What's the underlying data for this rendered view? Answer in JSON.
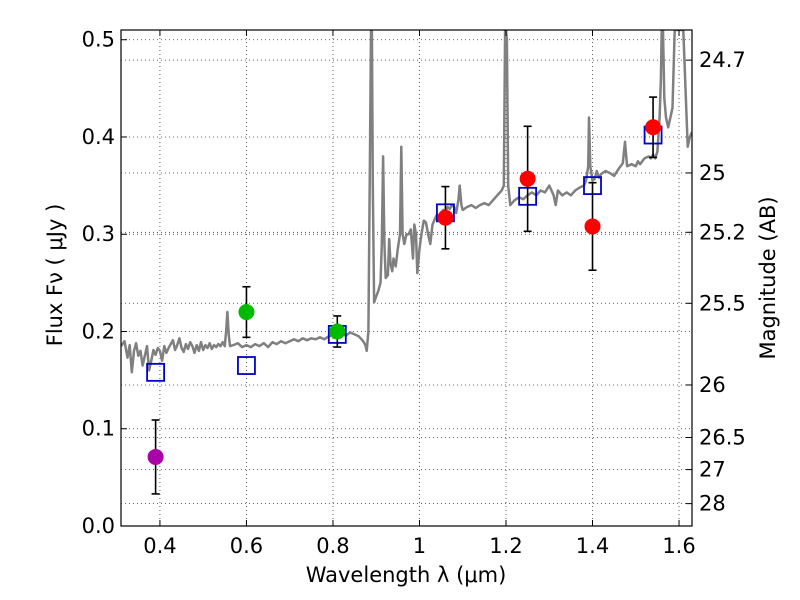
{
  "chart_data": {
    "type": "scatter",
    "xlabel": "Wavelength  λ (μm)",
    "ylabel": "Flux  Fν  ( μJy )",
    "y2label": "Magnitude (AB)",
    "xlim": [
      0.31,
      1.63
    ],
    "ylim": [
      0.0,
      0.51
    ],
    "grid": true,
    "x_ticks": [
      0.4,
      0.6,
      0.8,
      1.0,
      1.2,
      1.4,
      1.6
    ],
    "x_tick_labels": [
      "0.4",
      "0.6",
      "0.8",
      "1",
      "1.2",
      "1.4",
      "1.6"
    ],
    "y_ticks": [
      0.0,
      0.1,
      0.2,
      0.3,
      0.4,
      0.5
    ],
    "y_tick_labels": [
      "0.0",
      "0.1",
      "0.2",
      "0.3",
      "0.4",
      "0.5"
    ],
    "y2_ticks": [
      {
        "label": "24.7",
        "flux": 0.479
      },
      {
        "label": "25",
        "flux": 0.363
      },
      {
        "label": "25.2",
        "flux": 0.302
      },
      {
        "label": "25.5",
        "flux": 0.229
      },
      {
        "label": "26",
        "flux": 0.145
      },
      {
        "label": "26.5",
        "flux": 0.091
      },
      {
        "label": "27",
        "flux": 0.058
      },
      {
        "label": "28",
        "flux": 0.023
      }
    ],
    "model_spectrum": {
      "color": "#808080",
      "points": [
        [
          0.31,
          0.185
        ],
        [
          0.318,
          0.19
        ],
        [
          0.325,
          0.173
        ],
        [
          0.33,
          0.186
        ],
        [
          0.335,
          0.158
        ],
        [
          0.34,
          0.18
        ],
        [
          0.345,
          0.188
        ],
        [
          0.35,
          0.175
        ],
        [
          0.355,
          0.18
        ],
        [
          0.36,
          0.165
        ],
        [
          0.365,
          0.175
        ],
        [
          0.37,
          0.185
        ],
        [
          0.375,
          0.16
        ],
        [
          0.38,
          0.17
        ],
        [
          0.385,
          0.181
        ],
        [
          0.39,
          0.176
        ],
        [
          0.395,
          0.183
        ],
        [
          0.4,
          0.18
        ],
        [
          0.405,
          0.17
        ],
        [
          0.41,
          0.185
        ],
        [
          0.415,
          0.178
        ],
        [
          0.42,
          0.183
        ],
        [
          0.425,
          0.187
        ],
        [
          0.43,
          0.191
        ],
        [
          0.435,
          0.181
        ],
        [
          0.44,
          0.186
        ],
        [
          0.445,
          0.193
        ],
        [
          0.45,
          0.183
        ],
        [
          0.455,
          0.179
        ],
        [
          0.46,
          0.187
        ],
        [
          0.465,
          0.182
        ],
        [
          0.47,
          0.189
        ],
        [
          0.475,
          0.185
        ],
        [
          0.48,
          0.178
        ],
        [
          0.485,
          0.186
        ],
        [
          0.49,
          0.18
        ],
        [
          0.495,
          0.189
        ],
        [
          0.5,
          0.181
        ],
        [
          0.505,
          0.186
        ],
        [
          0.51,
          0.183
        ],
        [
          0.515,
          0.188
        ],
        [
          0.52,
          0.182
        ],
        [
          0.525,
          0.186
        ],
        [
          0.53,
          0.184
        ],
        [
          0.535,
          0.187
        ],
        [
          0.54,
          0.185
        ],
        [
          0.545,
          0.189
        ],
        [
          0.55,
          0.185
        ],
        [
          0.553,
          0.2
        ],
        [
          0.556,
          0.22
        ],
        [
          0.559,
          0.197
        ],
        [
          0.562,
          0.185
        ],
        [
          0.57,
          0.186
        ],
        [
          0.58,
          0.188
        ],
        [
          0.59,
          0.184
        ],
        [
          0.6,
          0.186
        ],
        [
          0.61,
          0.184
        ],
        [
          0.62,
          0.187
        ],
        [
          0.63,
          0.185
        ],
        [
          0.64,
          0.188
        ],
        [
          0.65,
          0.184
        ],
        [
          0.66,
          0.189
        ],
        [
          0.67,
          0.187
        ],
        [
          0.68,
          0.19
        ],
        [
          0.69,
          0.188
        ],
        [
          0.7,
          0.19
        ],
        [
          0.71,
          0.192
        ],
        [
          0.72,
          0.19
        ],
        [
          0.73,
          0.193
        ],
        [
          0.74,
          0.191
        ],
        [
          0.75,
          0.193
        ],
        [
          0.76,
          0.192
        ],
        [
          0.77,
          0.194
        ],
        [
          0.78,
          0.192
        ],
        [
          0.79,
          0.195
        ],
        [
          0.8,
          0.196
        ],
        [
          0.81,
          0.194
        ],
        [
          0.82,
          0.197
        ],
        [
          0.83,
          0.196
        ],
        [
          0.84,
          0.199
        ],
        [
          0.85,
          0.197
        ],
        [
          0.86,
          0.195
        ],
        [
          0.87,
          0.19
        ],
        [
          0.875,
          0.186
        ],
        [
          0.878,
          0.18
        ],
        [
          0.882,
          0.2
        ],
        [
          0.885,
          0.35
        ],
        [
          0.888,
          0.51
        ],
        [
          0.89,
          0.51
        ],
        [
          0.892,
          0.35
        ],
        [
          0.895,
          0.23
        ],
        [
          0.9,
          0.236
        ],
        [
          0.905,
          0.242
        ],
        [
          0.91,
          0.25
        ],
        [
          0.913,
          0.29
        ],
        [
          0.916,
          0.38
        ],
        [
          0.919,
          0.29
        ],
        [
          0.922,
          0.255
        ],
        [
          0.927,
          0.258
        ],
        [
          0.93,
          0.295
        ],
        [
          0.933,
          0.27
        ],
        [
          0.937,
          0.262
        ],
        [
          0.94,
          0.275
        ],
        [
          0.945,
          0.267
        ],
        [
          0.95,
          0.285
        ],
        [
          0.955,
          0.3
        ],
        [
          0.958,
          0.39
        ],
        [
          0.961,
          0.3
        ],
        [
          0.965,
          0.29
        ],
        [
          0.97,
          0.3
        ],
        [
          0.975,
          0.3
        ],
        [
          0.98,
          0.305
        ],
        [
          0.985,
          0.275
        ],
        [
          0.988,
          0.31
        ],
        [
          0.992,
          0.3
        ],
        [
          0.995,
          0.26
        ],
        [
          1.0,
          0.285
        ],
        [
          1.005,
          0.301
        ],
        [
          1.01,
          0.314
        ],
        [
          1.015,
          0.312
        ],
        [
          1.02,
          0.3
        ],
        [
          1.025,
          0.29
        ],
        [
          1.03,
          0.31
        ],
        [
          1.035,
          0.315
        ],
        [
          1.04,
          0.32
        ],
        [
          1.045,
          0.318
        ],
        [
          1.05,
          0.322
        ],
        [
          1.055,
          0.325
        ],
        [
          1.06,
          0.323
        ],
        [
          1.065,
          0.328
        ],
        [
          1.07,
          0.326
        ],
        [
          1.075,
          0.33
        ],
        [
          1.08,
          0.328
        ],
        [
          1.085,
          0.322
        ],
        [
          1.09,
          0.335
        ],
        [
          1.093,
          0.35
        ],
        [
          1.097,
          0.33
        ],
        [
          1.1,
          0.325
        ],
        [
          1.11,
          0.328
        ],
        [
          1.12,
          0.33
        ],
        [
          1.13,
          0.327
        ],
        [
          1.14,
          0.33
        ],
        [
          1.15,
          0.332
        ],
        [
          1.16,
          0.33
        ],
        [
          1.17,
          0.335
        ],
        [
          1.18,
          0.34
        ],
        [
          1.19,
          0.345
        ],
        [
          1.195,
          0.35
        ],
        [
          1.198,
          0.51
        ],
        [
          1.2,
          0.51
        ],
        [
          1.202,
          0.5
        ],
        [
          1.205,
          0.35
        ],
        [
          1.21,
          0.33
        ],
        [
          1.22,
          0.335
        ],
        [
          1.23,
          0.338
        ],
        [
          1.24,
          0.336
        ],
        [
          1.25,
          0.34
        ],
        [
          1.26,
          0.343
        ],
        [
          1.27,
          0.34
        ],
        [
          1.28,
          0.345
        ],
        [
          1.29,
          0.343
        ],
        [
          1.3,
          0.35
        ],
        [
          1.31,
          0.34
        ],
        [
          1.315,
          0.33
        ],
        [
          1.32,
          0.345
        ],
        [
          1.33,
          0.34
        ],
        [
          1.34,
          0.343
        ],
        [
          1.35,
          0.34
        ],
        [
          1.36,
          0.345
        ],
        [
          1.37,
          0.348
        ],
        [
          1.38,
          0.35
        ],
        [
          1.385,
          0.355
        ],
        [
          1.39,
          0.37
        ],
        [
          1.392,
          0.42
        ],
        [
          1.395,
          0.37
        ],
        [
          1.4,
          0.355
        ],
        [
          1.405,
          0.357
        ],
        [
          1.41,
          0.365
        ],
        [
          1.415,
          0.358
        ],
        [
          1.42,
          0.362
        ],
        [
          1.43,
          0.365
        ],
        [
          1.44,
          0.363
        ],
        [
          1.45,
          0.36
        ],
        [
          1.46,
          0.367
        ],
        [
          1.47,
          0.373
        ],
        [
          1.475,
          0.395
        ],
        [
          1.48,
          0.37
        ],
        [
          1.49,
          0.372
        ],
        [
          1.5,
          0.37
        ],
        [
          1.505,
          0.375
        ],
        [
          1.51,
          0.372
        ],
        [
          1.52,
          0.378
        ],
        [
          1.53,
          0.38
        ],
        [
          1.535,
          0.378
        ],
        [
          1.54,
          0.382
        ],
        [
          1.545,
          0.378
        ],
        [
          1.55,
          0.385
        ],
        [
          1.555,
          0.42
        ],
        [
          1.558,
          0.46
        ],
        [
          1.56,
          0.51
        ],
        [
          1.563,
          0.51
        ],
        [
          1.566,
          0.44
        ],
        [
          1.57,
          0.42
        ],
        [
          1.575,
          0.41
        ],
        [
          1.58,
          0.42
        ],
        [
          1.585,
          0.43
        ],
        [
          1.59,
          0.51
        ],
        [
          1.6,
          0.51
        ],
        [
          1.61,
          0.51
        ],
        [
          1.615,
          0.45
        ],
        [
          1.62,
          0.39
        ],
        [
          1.625,
          0.4
        ],
        [
          1.63,
          0.405
        ]
      ]
    },
    "model_photometry": {
      "marker": "open-square",
      "color": "#0000cc",
      "points": [
        {
          "x": 0.39,
          "y": 0.158
        },
        {
          "x": 0.6,
          "y": 0.165
        },
        {
          "x": 0.81,
          "y": 0.197
        },
        {
          "x": 1.06,
          "y": 0.322
        },
        {
          "x": 1.25,
          "y": 0.339
        },
        {
          "x": 1.4,
          "y": 0.35
        },
        {
          "x": 1.54,
          "y": 0.402
        }
      ]
    },
    "observed_photometry": [
      {
        "x": 0.39,
        "y": 0.071,
        "err": 0.038,
        "color": "#aa00aa"
      },
      {
        "x": 0.6,
        "y": 0.22,
        "err": 0.026,
        "color": "#00bb00"
      },
      {
        "x": 0.81,
        "y": 0.2,
        "err": 0.016,
        "color": "#00bb00"
      },
      {
        "x": 1.06,
        "y": 0.317,
        "err": 0.032,
        "color": "#ff0000"
      },
      {
        "x": 1.25,
        "y": 0.357,
        "err": 0.054,
        "color": "#ff0000"
      },
      {
        "x": 1.4,
        "y": 0.308,
        "err": 0.045,
        "color": "#ff0000"
      },
      {
        "x": 1.54,
        "y": 0.41,
        "err": 0.031,
        "color": "#ff0000"
      }
    ]
  }
}
